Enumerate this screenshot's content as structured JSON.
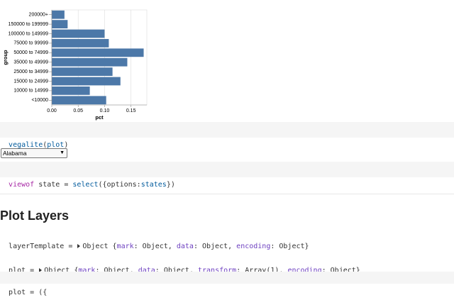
{
  "chart_data": {
    "type": "bar",
    "orientation": "horizontal",
    "categories": [
      "200000+",
      "150000 to 199999",
      "100000 to 149999",
      "75000 to 99999",
      "50000 to 74999",
      "35000 to 49999",
      "25000 to 34999",
      "15000 to 24999",
      "10000 to 14999",
      "<10000"
    ],
    "values": [
      0.024,
      0.03,
      0.1,
      0.108,
      0.174,
      0.143,
      0.115,
      0.13,
      0.072,
      0.103
    ],
    "color": "#4c78a8",
    "xlim": [
      0,
      0.18
    ],
    "xticks": [
      {
        "value": 0,
        "label": "0.00"
      },
      {
        "value": 0.05,
        "label": "0.05"
      },
      {
        "value": 0.1,
        "label": "0.10"
      },
      {
        "value": 0.15,
        "label": "0.15"
      }
    ],
    "x_label": "pct",
    "y_label": "group",
    "grid": true
  },
  "cell_1_code": [
    "vegalite",
    "(",
    "plot",
    ")"
  ],
  "state_select": "Alabama",
  "cell_2_code": [
    "viewof",
    " state = ",
    "select",
    "({options:",
    "states",
    "})"
  ],
  "section_heading": "Plot Layers",
  "layer_template": [
    "layerTemplate = ",
    "Object {",
    "mark",
    ": Object, ",
    "data",
    ": Object, ",
    "encoding",
    ": Object}"
  ],
  "plot_output": [
    "plot = ",
    "Object {",
    "mark",
    ": Object, ",
    "data",
    ": Object, ",
    "transform",
    ": Array(1), ",
    "encoding",
    ": Object}"
  ],
  "cell_3_code": "plot = ({"
}
